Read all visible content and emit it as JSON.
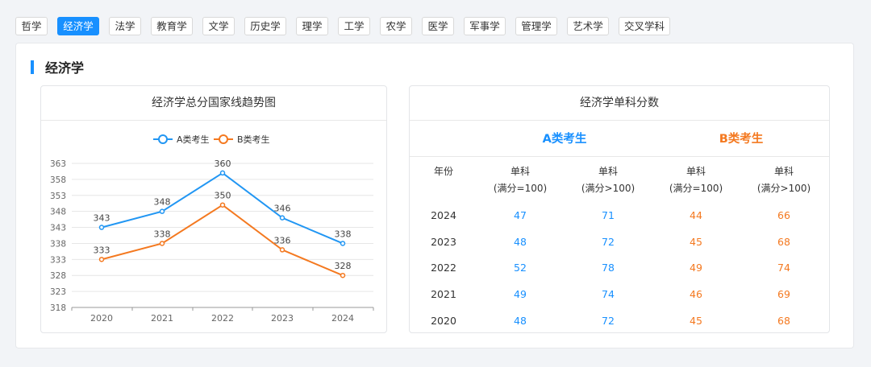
{
  "tabs": [
    "哲学",
    "经济学",
    "法学",
    "教育学",
    "文学",
    "历史学",
    "理学",
    "工学",
    "农学",
    "医学",
    "军事学",
    "管理学",
    "艺术学",
    "交叉学科"
  ],
  "active_tab": "经济学",
  "section_title": "经济学",
  "chart_card_title": "经济学总分国家线趋势图",
  "table_card_title": "经济学单科分数",
  "chart_data": {
    "type": "line",
    "title": "经济学总分国家线趋势图",
    "categories": [
      "2020",
      "2021",
      "2022",
      "2023",
      "2024"
    ],
    "series": [
      {
        "name": "A类考生",
        "values": [
          343,
          348,
          360,
          346,
          338
        ],
        "color": "#2196f3"
      },
      {
        "name": "B类考生",
        "values": [
          333,
          338,
          350,
          336,
          328
        ],
        "color": "#f47920"
      }
    ],
    "yticks": [
      318,
      323,
      328,
      333,
      338,
      343,
      348,
      353,
      358,
      363
    ],
    "ylim": [
      318,
      363
    ],
    "legend": "top-center",
    "grid": true
  },
  "table": {
    "group_a": "A类考生",
    "group_b": "B类考生",
    "year_header": "年份",
    "col_headers": [
      [
        "单科",
        "(满分=100)"
      ],
      [
        "单科",
        "(满分>100)"
      ],
      [
        "单科",
        "(满分=100)"
      ],
      [
        "单科",
        "(满分>100)"
      ]
    ],
    "rows": [
      {
        "year": "2024",
        "a100": "47",
        "a_gt": "71",
        "b100": "44",
        "b_gt": "66"
      },
      {
        "year": "2023",
        "a100": "48",
        "a_gt": "72",
        "b100": "45",
        "b_gt": "68"
      },
      {
        "year": "2022",
        "a100": "52",
        "a_gt": "78",
        "b100": "49",
        "b_gt": "74"
      },
      {
        "year": "2021",
        "a100": "49",
        "a_gt": "74",
        "b100": "46",
        "b_gt": "69"
      },
      {
        "year": "2020",
        "a100": "48",
        "a_gt": "72",
        "b100": "45",
        "b_gt": "68"
      }
    ]
  }
}
